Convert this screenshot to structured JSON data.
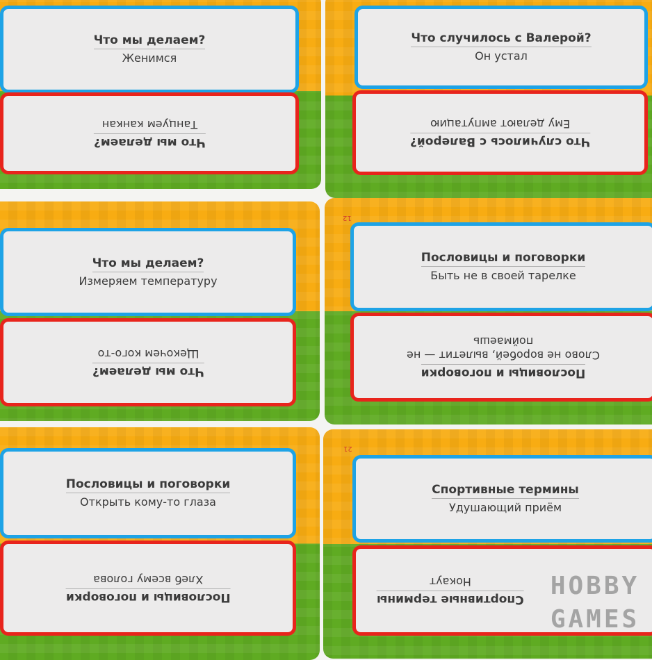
{
  "cards": [
    {
      "top": {
        "title": "Что мы делаем?",
        "answer": "Женимся"
      },
      "bottom": {
        "title": "Что мы делаем?",
        "answer": "Танцуем канкан"
      }
    },
    {
      "top": {
        "title": "Что случилось с Валерой?",
        "answer": "Он устал"
      },
      "bottom": {
        "title": "Что случилось с Валерой?",
        "answer": "Ему делают ампутацию"
      }
    },
    {
      "top": {
        "title": "Что мы делаем?",
        "answer": "Измеряем температуру"
      },
      "bottom": {
        "title": "Что мы делаем?",
        "answer": "Щекочем кого-то"
      }
    },
    {
      "number": "12",
      "top": {
        "title": "Пословицы и поговорки",
        "answer": "Быть не в своей тарелке"
      },
      "bottom": {
        "title": "Пословицы и поговорки",
        "answer": "Слово не воробей, вылетит — не поймаешь"
      }
    },
    {
      "top": {
        "title": "Пословицы и поговорки",
        "answer": "Открыть кому-то глаза"
      },
      "bottom": {
        "title": "Пословицы и поговорки",
        "answer": "Хлеб всему голова"
      }
    },
    {
      "number": "21",
      "top": {
        "title": "Спортивные термины",
        "answer": "Удушающий приём"
      },
      "bottom": {
        "title": "Спортивные термины",
        "answer": "Нокаут"
      }
    }
  ],
  "watermark": {
    "line1": "HOBBY",
    "line2": "GAMES"
  },
  "colors": {
    "orange": "#f8ac12",
    "green": "#5fab22",
    "blue_border": "#1ea3e6",
    "red_border": "#e8241c"
  }
}
